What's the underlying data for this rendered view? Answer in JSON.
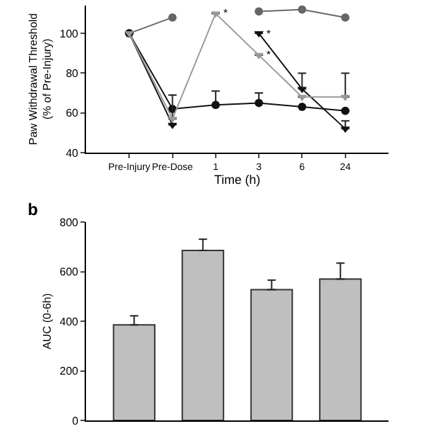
{
  "chart_data": [
    {
      "type": "line",
      "xlabel": "Time (h)",
      "ylabel": "Paw Withdrawal Threshold\n(% of Pre-Injury)",
      "categories": [
        "Pre-Injury",
        "Pre-Dose",
        "1",
        "3",
        "6",
        "24"
      ],
      "ylim": [
        40,
        114
      ],
      "yticks": [
        40,
        60,
        80,
        100
      ],
      "grid": false,
      "series": [
        {
          "color": "#666666",
          "marker": "circle",
          "values": [
            100,
            108,
            null,
            111,
            112,
            108
          ]
        },
        {
          "color": "#111111",
          "marker": "circle",
          "values": [
            100,
            62,
            64,
            65,
            63,
            61
          ],
          "errors": [
            null,
            null,
            [
              64,
              71
            ],
            [
              65,
              70
            ],
            null,
            null
          ]
        },
        {
          "color": "#111111",
          "marker": "triangle",
          "values": [
            100,
            54,
            null,
            100,
            72,
            52
          ],
          "errors": [
            null,
            null,
            null,
            null,
            [
              72,
              80
            ],
            [
              52,
              56
            ]
          ]
        },
        {
          "color": "#999999",
          "marker": "triangle",
          "values": [
            100,
            57,
            110,
            89,
            68,
            68
          ],
          "errors": [
            null,
            [
              57,
              69
            ],
            null,
            null,
            null,
            [
              68,
              80
            ]
          ]
        }
      ],
      "annotations": [
        {
          "text": "*",
          "x": "1",
          "y": 110
        },
        {
          "text": "*",
          "x": "3",
          "y": 100
        },
        {
          "text": "*",
          "x": "3",
          "y": 89
        }
      ]
    },
    {
      "type": "bar",
      "ylabel": "AUC (0-6h)",
      "categories": [
        null,
        null,
        null,
        null
      ],
      "values": [
        385,
        685,
        527,
        570
      ],
      "errors": [
        [
          385,
          422
        ],
        [
          685,
          731
        ],
        [
          527,
          566
        ],
        [
          570,
          634
        ]
      ],
      "color": "#bfbfbf",
      "ylim": [
        0,
        800
      ],
      "yticks": [
        0,
        200,
        400,
        600,
        800
      ],
      "grid": false,
      "annotations": [
        "b"
      ]
    }
  ]
}
